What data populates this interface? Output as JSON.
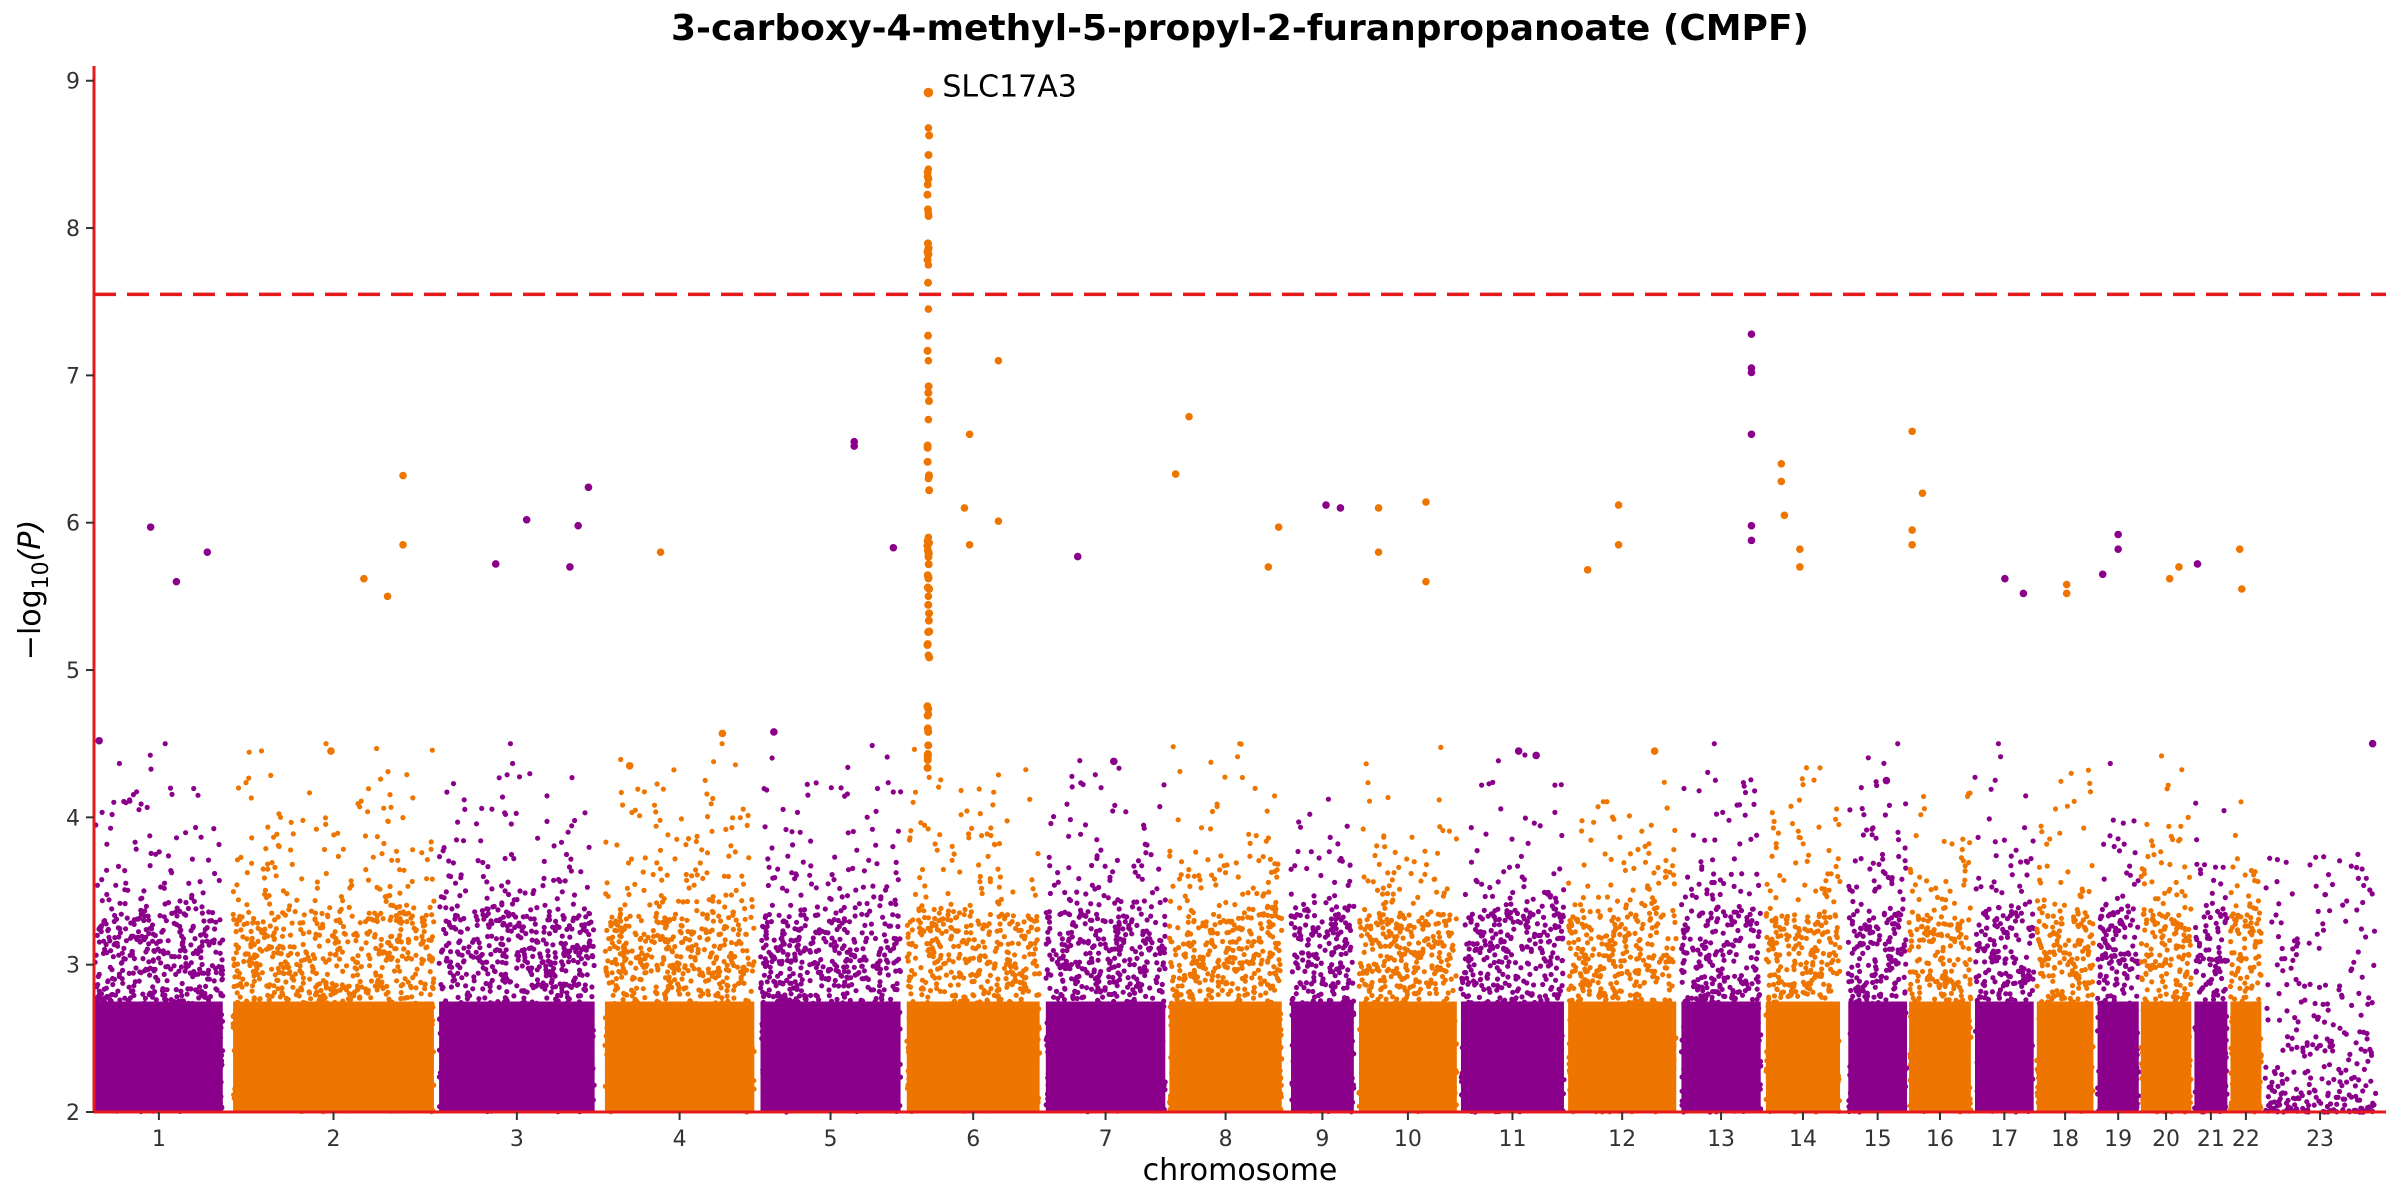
{
  "chart_data": {
    "type": "scatter",
    "subtype": "manhattan",
    "title": "3-carboxy-4-methyl-5-propyl-2-furanpropanoate (CMPF)",
    "xlabel": "chromosome",
    "ylabel": "−log10(P)",
    "ylim": [
      2,
      9.1
    ],
    "yticks": [
      2,
      3,
      4,
      5,
      6,
      7,
      8,
      9
    ],
    "grid": false,
    "legend": "none",
    "significance_threshold": 7.55,
    "colors": {
      "odd": "#8B008B",
      "even": "#EE7600",
      "threshold": "#E41A1C",
      "axis": "#E41A1C"
    },
    "chromosomes": [
      {
        "label": "1",
        "span": [
          1,
          125
        ],
        "peaks": [
          {
            "x": 5,
            "y": 4.52
          },
          {
            "x": 55,
            "y": 5.97
          },
          {
            "x": 80,
            "y": 5.6
          },
          {
            "x": 110,
            "y": 5.8
          }
        ]
      },
      {
        "label": "2",
        "span": [
          135,
          330
        ],
        "peaks": [
          {
            "x": 262,
            "y": 5.62
          },
          {
            "x": 285,
            "y": 5.5
          },
          {
            "x": 300,
            "y": 6.32
          },
          {
            "x": 300,
            "y": 5.85
          },
          {
            "x": 230,
            "y": 4.45
          }
        ]
      },
      {
        "label": "3",
        "span": [
          335,
          486
        ],
        "peaks": [
          {
            "x": 390,
            "y": 5.72
          },
          {
            "x": 420,
            "y": 6.02
          },
          {
            "x": 470,
            "y": 5.98
          },
          {
            "x": 480,
            "y": 6.24
          },
          {
            "x": 462,
            "y": 5.7
          }
        ]
      },
      {
        "label": "4",
        "span": [
          496,
          641
        ],
        "peaks": [
          {
            "x": 550,
            "y": 5.8
          },
          {
            "x": 610,
            "y": 4.57
          },
          {
            "x": 520,
            "y": 4.35
          }
        ]
      },
      {
        "label": "5",
        "span": [
          647,
          783
        ],
        "peaks": [
          {
            "x": 660,
            "y": 4.58
          },
          {
            "x": 738,
            "y": 6.55
          },
          {
            "x": 738,
            "y": 6.52
          },
          {
            "x": 776,
            "y": 5.83
          }
        ]
      },
      {
        "label": "6",
        "span": [
          789,
          918
        ],
        "peaks": [
          {
            "x": 810,
            "y": 8.92,
            "label": "SLC17A3"
          },
          {
            "x": 810,
            "y": 8.68
          },
          {
            "x": 810,
            "y": 8.4
          },
          {
            "x": 810,
            "y": 8.1
          },
          {
            "x": 810,
            "y": 7.75
          },
          {
            "x": 810,
            "y": 7.45
          },
          {
            "x": 810,
            "y": 7.1
          },
          {
            "x": 810,
            "y": 6.7
          },
          {
            "x": 810,
            "y": 6.3
          },
          {
            "x": 810,
            "y": 5.9
          },
          {
            "x": 810,
            "y": 5.5
          },
          {
            "x": 810,
            "y": 5.1
          },
          {
            "x": 810,
            "y": 4.7
          },
          {
            "x": 850,
            "y": 6.6
          },
          {
            "x": 845,
            "y": 6.1
          },
          {
            "x": 878,
            "y": 7.1
          },
          {
            "x": 878,
            "y": 6.01
          },
          {
            "x": 850,
            "y": 5.85
          }
        ]
      },
      {
        "label": "7",
        "span": [
          924,
          1040
        ],
        "peaks": [
          {
            "x": 955,
            "y": 5.77
          },
          {
            "x": 990,
            "y": 4.38
          }
        ]
      },
      {
        "label": "8",
        "span": [
          1044,
          1153
        ],
        "peaks": [
          {
            "x": 1050,
            "y": 6.33
          },
          {
            "x": 1063,
            "y": 6.72
          },
          {
            "x": 1140,
            "y": 5.7
          },
          {
            "x": 1150,
            "y": 5.97
          }
        ]
      },
      {
        "label": "9",
        "span": [
          1162,
          1223
        ],
        "peaks": [
          {
            "x": 1196,
            "y": 6.12
          },
          {
            "x": 1210,
            "y": 6.1
          }
        ]
      },
      {
        "label": "10",
        "span": [
          1228,
          1323
        ],
        "peaks": [
          {
            "x": 1247,
            "y": 6.1
          },
          {
            "x": 1247,
            "y": 5.8
          },
          {
            "x": 1293,
            "y": 6.14
          },
          {
            "x": 1293,
            "y": 5.6
          }
        ]
      },
      {
        "label": "11",
        "span": [
          1327,
          1427
        ],
        "peaks": [
          {
            "x": 1383,
            "y": 4.45
          },
          {
            "x": 1400,
            "y": 4.42
          }
        ]
      },
      {
        "label": "12",
        "span": [
          1431,
          1536
        ],
        "peaks": [
          {
            "x": 1480,
            "y": 6.12
          },
          {
            "x": 1480,
            "y": 5.85
          },
          {
            "x": 1450,
            "y": 5.68
          },
          {
            "x": 1515,
            "y": 4.45
          }
        ]
      },
      {
        "label": "13",
        "span": [
          1541,
          1618
        ],
        "peaks": [
          {
            "x": 1609,
            "y": 7.28
          },
          {
            "x": 1609,
            "y": 7.05
          },
          {
            "x": 1609,
            "y": 7.02
          },
          {
            "x": 1609,
            "y": 6.6
          },
          {
            "x": 1609,
            "y": 5.98
          },
          {
            "x": 1609,
            "y": 5.88
          }
        ]
      },
      {
        "label": "14",
        "span": [
          1623,
          1695
        ],
        "peaks": [
          {
            "x": 1638,
            "y": 6.4
          },
          {
            "x": 1638,
            "y": 6.28
          },
          {
            "x": 1641,
            "y": 6.05
          },
          {
            "x": 1656,
            "y": 5.82
          },
          {
            "x": 1656,
            "y": 5.7
          }
        ]
      },
      {
        "label": "15",
        "span": [
          1703,
          1760
        ],
        "peaks": [
          {
            "x": 1740,
            "y": 4.25
          }
        ]
      },
      {
        "label": "16",
        "span": [
          1762,
          1822
        ],
        "peaks": [
          {
            "x": 1765,
            "y": 6.62
          },
          {
            "x": 1765,
            "y": 5.95
          },
          {
            "x": 1765,
            "y": 5.85
          },
          {
            "x": 1775,
            "y": 6.2
          }
        ]
      },
      {
        "label": "17",
        "span": [
          1826,
          1883
        ],
        "peaks": [
          {
            "x": 1855,
            "y": 5.62
          },
          {
            "x": 1873,
            "y": 5.52
          }
        ]
      },
      {
        "label": "18",
        "span": [
          1886,
          1941
        ],
        "peaks": [
          {
            "x": 1915,
            "y": 5.58
          },
          {
            "x": 1915,
            "y": 5.52
          }
        ]
      },
      {
        "label": "19",
        "span": [
          1945,
          1985
        ],
        "peaks": [
          {
            "x": 1965,
            "y": 5.92
          },
          {
            "x": 1965,
            "y": 5.82
          },
          {
            "x": 1950,
            "y": 5.65
          }
        ]
      },
      {
        "label": "20",
        "span": [
          1987,
          2036
        ],
        "peaks": [
          {
            "x": 2015,
            "y": 5.62
          },
          {
            "x": 2024,
            "y": 5.7
          }
        ]
      },
      {
        "label": "21",
        "span": [
          2039,
          2071
        ],
        "peaks": [
          {
            "x": 2042,
            "y": 5.72
          }
        ]
      },
      {
        "label": "22",
        "span": [
          2074,
          2104
        ],
        "peaks": [
          {
            "x": 2083,
            "y": 5.82
          },
          {
            "x": 2085,
            "y": 5.55
          }
        ]
      },
      {
        "label": "23",
        "span": [
          2107,
          2215
        ],
        "peaks": [
          {
            "x": 2212,
            "y": 4.5
          }
        ]
      }
    ]
  }
}
